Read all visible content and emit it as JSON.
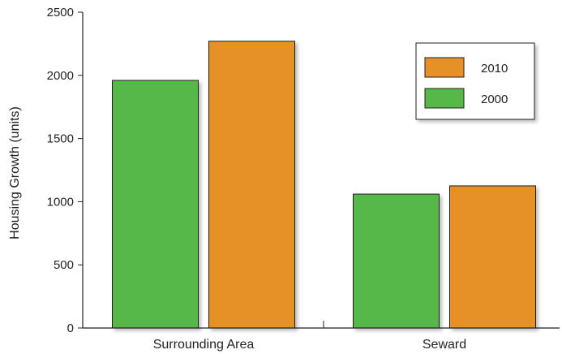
{
  "chart_data": {
    "type": "bar",
    "title": "",
    "xlabel": "",
    "ylabel": "Housing Growth (units)",
    "ylim": [
      0,
      2500
    ],
    "yticks": [
      0,
      500,
      1000,
      1500,
      2000,
      2500
    ],
    "grid": false,
    "legend_position": "top-right",
    "categories": [
      "Surrounding Area",
      "Seward"
    ],
    "series": [
      {
        "name": "2000",
        "color": "#55b848",
        "values": [
          1960,
          1060
        ]
      },
      {
        "name": "2010",
        "color": "#e59125",
        "values": [
          2270,
          1125
        ]
      }
    ],
    "legend_order": [
      "2010",
      "2000"
    ]
  }
}
